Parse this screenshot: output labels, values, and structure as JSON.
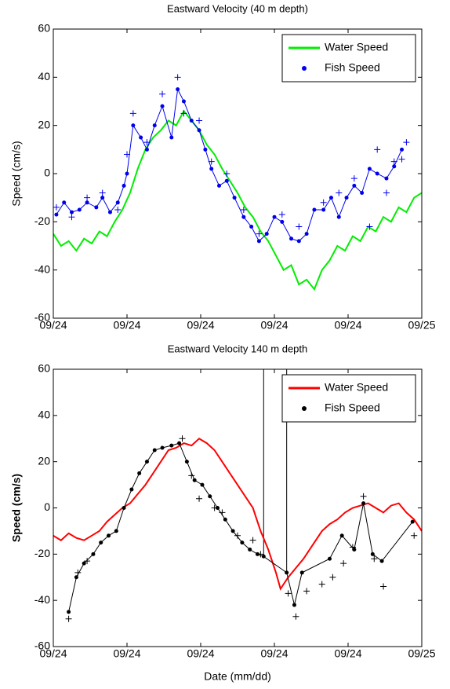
{
  "chart_data": [
    {
      "type": "line",
      "title": "Eastward Velocity (40 m depth)",
      "ylabel": "Speed (cm/s)",
      "xlim": [
        0,
        24
      ],
      "xticks": [
        {
          "value": 0,
          "label": "09/24"
        },
        {
          "value": 4.8,
          "label": "09/24"
        },
        {
          "value": 9.6,
          "label": "09/24"
        },
        {
          "value": 14.4,
          "label": "09/24"
        },
        {
          "value": 19.2,
          "label": "09/24"
        },
        {
          "value": 24,
          "label": "09/25"
        }
      ],
      "ylim": [
        -60,
        60
      ],
      "yticks": [
        -60,
        -40,
        -20,
        0,
        20,
        40,
        60
      ],
      "legend": "northeast",
      "series": [
        {
          "name": "Water Speed",
          "color": "#00ee00",
          "marker": "none",
          "line": true,
          "x": [
            0,
            0.5,
            1,
            1.5,
            2,
            2.5,
            3,
            3.5,
            4,
            4.5,
            5,
            5.5,
            6,
            6.5,
            7,
            7.5,
            8,
            8.5,
            9,
            9.5,
            10,
            10.5,
            11,
            11.5,
            12,
            12.5,
            13,
            13.5,
            14,
            14.5,
            15,
            15.5,
            16,
            16.5,
            17,
            17.5,
            18,
            18.5,
            19,
            19.5,
            20,
            20.5,
            21,
            21.5,
            22,
            22.5,
            23,
            23.5,
            24
          ],
          "values": [
            -25,
            -30,
            -28,
            -32,
            -27,
            -29,
            -24,
            -26,
            -20,
            -15,
            -8,
            2,
            10,
            15,
            18,
            22,
            20,
            26,
            22,
            18,
            12,
            8,
            2,
            -3,
            -8,
            -14,
            -18,
            -24,
            -28,
            -34,
            -40,
            -38,
            -46,
            -44,
            -48,
            -40,
            -36,
            -30,
            -32,
            -26,
            -28,
            -22,
            -24,
            -18,
            -20,
            -14,
            -16,
            -10,
            -8
          ]
        },
        {
          "name": "Fish Speed",
          "color": "#0000ee",
          "marker": "dot",
          "line": true,
          "x": [
            0.2,
            0.7,
            1.2,
            1.7,
            2.2,
            2.8,
            3.2,
            3.7,
            4.2,
            4.6,
            4.8,
            5.2,
            5.7,
            6.1,
            6.6,
            7.1,
            7.7,
            8.1,
            8.5,
            9.0,
            9.5,
            9.9,
            10.3,
            10.8,
            11.3,
            11.8,
            12.4,
            12.9,
            13.4,
            13.9,
            14.4,
            14.9,
            15.5,
            16.0,
            16.5,
            17.0,
            17.6,
            18.1,
            18.6,
            19.1,
            19.6,
            20.1,
            20.6,
            21.1,
            21.7,
            22.2,
            22.7
          ],
          "values": [
            -17,
            -12,
            -16,
            -15,
            -12,
            -14,
            -10,
            -16,
            -12,
            -5,
            0,
            20,
            15,
            10,
            20,
            28,
            15,
            35,
            30,
            22,
            18,
            10,
            2,
            -5,
            -3,
            -10,
            -18,
            -22,
            -28,
            -25,
            -18,
            -20,
            -27,
            -28,
            -25,
            -15,
            -15,
            -10,
            -18,
            -10,
            -5,
            -8,
            2,
            0,
            -2,
            3,
            10
          ]
        },
        {
          "color": "#0000ee",
          "marker": "+",
          "line": false,
          "x": [
            0.2,
            1.2,
            2.2,
            3.2,
            4.2,
            4.8,
            5.2,
            6.1,
            7.1,
            8.1,
            8.5,
            9.5,
            10.3,
            11.3,
            12.4,
            13.4,
            14.9,
            16.0,
            17.6,
            18.6,
            19.6,
            20.6,
            21.1,
            21.7,
            22.2,
            22.7,
            23.0
          ],
          "values": [
            -14,
            -18,
            -10,
            -8,
            -15,
            8,
            25,
            13,
            33,
            40,
            25,
            22,
            5,
            0,
            -15,
            -25,
            -17,
            -22,
            -12,
            -8,
            -2,
            -22,
            10,
            -8,
            5,
            6,
            13
          ]
        }
      ]
    },
    {
      "type": "line",
      "title": "Eastward Velocity 140 m depth",
      "ylabel": "Speed (cm/s)",
      "xlabel": "Date (mm/dd)",
      "xlim": [
        0,
        24
      ],
      "xticks": [
        {
          "value": 0,
          "label": "09/24"
        },
        {
          "value": 4.8,
          "label": "09/24"
        },
        {
          "value": 9.6,
          "label": "09/24"
        },
        {
          "value": 14.4,
          "label": "09/24"
        },
        {
          "value": 19.2,
          "label": "09/24"
        },
        {
          "value": 24,
          "label": "09/25"
        }
      ],
      "ylim": [
        -60,
        60
      ],
      "yticks": [
        -60,
        -40,
        -20,
        0,
        20,
        40,
        60
      ],
      "legend": "northeast",
      "vlines": [
        {
          "x": 13.7,
          "y": [
            -21,
            60
          ]
        },
        {
          "x": 15.2,
          "y": [
            -28,
            60
          ]
        }
      ],
      "series": [
        {
          "name": "Water Speed",
          "color": "#ff0000",
          "marker": "none",
          "line": true,
          "x": [
            0,
            0.5,
            1,
            1.5,
            2,
            2.5,
            3,
            3.5,
            4,
            4.5,
            5,
            5.5,
            6,
            6.5,
            7,
            7.5,
            8,
            8.5,
            9,
            9.5,
            10,
            10.5,
            11,
            11.5,
            12,
            12.5,
            13,
            13.5,
            14,
            14.5,
            14.8,
            15.3,
            15.8,
            16.3,
            17,
            17.5,
            18,
            18.5,
            19,
            19.5,
            20,
            20.5,
            21,
            21.5,
            22,
            22.5,
            23,
            23.5,
            24
          ],
          "values": [
            -12,
            -14,
            -11,
            -13,
            -14,
            -12,
            -10,
            -6,
            -3,
            0,
            2,
            6,
            10,
            15,
            20,
            25,
            26,
            28,
            27,
            30,
            28,
            25,
            20,
            15,
            10,
            5,
            0,
            -10,
            -18,
            -28,
            -35,
            -30,
            -26,
            -22,
            -15,
            -10,
            -7,
            -5,
            -2,
            0,
            1,
            2,
            0,
            -2,
            1,
            2,
            -2,
            -5,
            -10
          ]
        },
        {
          "name": "Fish Speed",
          "color": "#000000",
          "marker": "dot",
          "line": true,
          "x": [
            1.0,
            1.5,
            2.0,
            2.6,
            3.1,
            3.6,
            4.1,
            4.6,
            5.1,
            5.6,
            6.1,
            6.6,
            7.1,
            7.7,
            8.2,
            8.7,
            9.2,
            9.7,
            10.2,
            10.7,
            11.2,
            11.7,
            12.3,
            12.8,
            13.3,
            13.7,
            15.2,
            15.7,
            16.2,
            18.0,
            18.8,
            19.6,
            20.2,
            20.8,
            21.4,
            23.4
          ],
          "values": [
            -45,
            -30,
            -24,
            -20,
            -15,
            -12,
            -10,
            0,
            8,
            15,
            20,
            25,
            26,
            27,
            28,
            20,
            12,
            10,
            5,
            0,
            -5,
            -10,
            -15,
            -18,
            -20,
            -21,
            -28,
            -42,
            -28,
            -22,
            -12,
            -18,
            2,
            -20,
            -23,
            -6
          ]
        },
        {
          "color": "#000000",
          "marker": "+",
          "line": false,
          "x": [
            1.0,
            1.6,
            2.2,
            8.4,
            9.0,
            9.5,
            10.5,
            11.0,
            12.0,
            13.0,
            13.5,
            15.3,
            15.8,
            16.5,
            17.5,
            18.2,
            18.9,
            19.5,
            20.2,
            20.9,
            21.5,
            23.5
          ],
          "values": [
            -48,
            -28,
            -23,
            30,
            14,
            4,
            0,
            -2,
            -12,
            -14,
            -20,
            -37,
            -47,
            -36,
            -33,
            -30,
            -24,
            -17,
            5,
            -22,
            -34,
            -12
          ]
        }
      ]
    }
  ]
}
